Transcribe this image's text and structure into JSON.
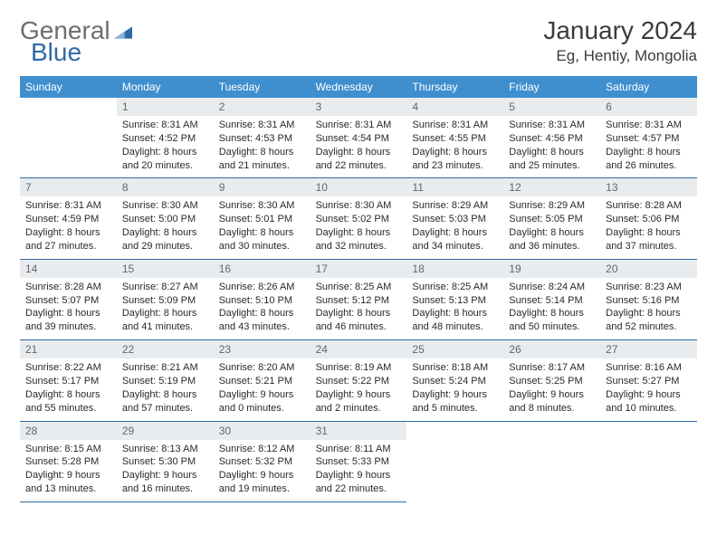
{
  "logo": {
    "part1": "General",
    "part2": "Blue"
  },
  "header": {
    "title": "January 2024",
    "location": "Eg, Hentiy, Mongolia"
  },
  "colors": {
    "header_bg": "#3f8fcf",
    "header_text": "#ffffff",
    "daynum_bg": "#e9ecef",
    "daynum_text": "#666666",
    "body_text": "#2a2a2a",
    "rule": "#2f6aa8",
    "logo_gray": "#6e6e6e",
    "logo_blue": "#2f6aa8"
  },
  "weekdays": [
    "Sunday",
    "Monday",
    "Tuesday",
    "Wednesday",
    "Thursday",
    "Friday",
    "Saturday"
  ],
  "start_offset": 1,
  "days": [
    {
      "n": 1,
      "sunrise": "8:31 AM",
      "sunset": "4:52 PM",
      "daylight": "8 hours and 20 minutes."
    },
    {
      "n": 2,
      "sunrise": "8:31 AM",
      "sunset": "4:53 PM",
      "daylight": "8 hours and 21 minutes."
    },
    {
      "n": 3,
      "sunrise": "8:31 AM",
      "sunset": "4:54 PM",
      "daylight": "8 hours and 22 minutes."
    },
    {
      "n": 4,
      "sunrise": "8:31 AM",
      "sunset": "4:55 PM",
      "daylight": "8 hours and 23 minutes."
    },
    {
      "n": 5,
      "sunrise": "8:31 AM",
      "sunset": "4:56 PM",
      "daylight": "8 hours and 25 minutes."
    },
    {
      "n": 6,
      "sunrise": "8:31 AM",
      "sunset": "4:57 PM",
      "daylight": "8 hours and 26 minutes."
    },
    {
      "n": 7,
      "sunrise": "8:31 AM",
      "sunset": "4:59 PM",
      "daylight": "8 hours and 27 minutes."
    },
    {
      "n": 8,
      "sunrise": "8:30 AM",
      "sunset": "5:00 PM",
      "daylight": "8 hours and 29 minutes."
    },
    {
      "n": 9,
      "sunrise": "8:30 AM",
      "sunset": "5:01 PM",
      "daylight": "8 hours and 30 minutes."
    },
    {
      "n": 10,
      "sunrise": "8:30 AM",
      "sunset": "5:02 PM",
      "daylight": "8 hours and 32 minutes."
    },
    {
      "n": 11,
      "sunrise": "8:29 AM",
      "sunset": "5:03 PM",
      "daylight": "8 hours and 34 minutes."
    },
    {
      "n": 12,
      "sunrise": "8:29 AM",
      "sunset": "5:05 PM",
      "daylight": "8 hours and 36 minutes."
    },
    {
      "n": 13,
      "sunrise": "8:28 AM",
      "sunset": "5:06 PM",
      "daylight": "8 hours and 37 minutes."
    },
    {
      "n": 14,
      "sunrise": "8:28 AM",
      "sunset": "5:07 PM",
      "daylight": "8 hours and 39 minutes."
    },
    {
      "n": 15,
      "sunrise": "8:27 AM",
      "sunset": "5:09 PM",
      "daylight": "8 hours and 41 minutes."
    },
    {
      "n": 16,
      "sunrise": "8:26 AM",
      "sunset": "5:10 PM",
      "daylight": "8 hours and 43 minutes."
    },
    {
      "n": 17,
      "sunrise": "8:25 AM",
      "sunset": "5:12 PM",
      "daylight": "8 hours and 46 minutes."
    },
    {
      "n": 18,
      "sunrise": "8:25 AM",
      "sunset": "5:13 PM",
      "daylight": "8 hours and 48 minutes."
    },
    {
      "n": 19,
      "sunrise": "8:24 AM",
      "sunset": "5:14 PM",
      "daylight": "8 hours and 50 minutes."
    },
    {
      "n": 20,
      "sunrise": "8:23 AM",
      "sunset": "5:16 PM",
      "daylight": "8 hours and 52 minutes."
    },
    {
      "n": 21,
      "sunrise": "8:22 AM",
      "sunset": "5:17 PM",
      "daylight": "8 hours and 55 minutes."
    },
    {
      "n": 22,
      "sunrise": "8:21 AM",
      "sunset": "5:19 PM",
      "daylight": "8 hours and 57 minutes."
    },
    {
      "n": 23,
      "sunrise": "8:20 AM",
      "sunset": "5:21 PM",
      "daylight": "9 hours and 0 minutes."
    },
    {
      "n": 24,
      "sunrise": "8:19 AM",
      "sunset": "5:22 PM",
      "daylight": "9 hours and 2 minutes."
    },
    {
      "n": 25,
      "sunrise": "8:18 AM",
      "sunset": "5:24 PM",
      "daylight": "9 hours and 5 minutes."
    },
    {
      "n": 26,
      "sunrise": "8:17 AM",
      "sunset": "5:25 PM",
      "daylight": "9 hours and 8 minutes."
    },
    {
      "n": 27,
      "sunrise": "8:16 AM",
      "sunset": "5:27 PM",
      "daylight": "9 hours and 10 minutes."
    },
    {
      "n": 28,
      "sunrise": "8:15 AM",
      "sunset": "5:28 PM",
      "daylight": "9 hours and 13 minutes."
    },
    {
      "n": 29,
      "sunrise": "8:13 AM",
      "sunset": "5:30 PM",
      "daylight": "9 hours and 16 minutes."
    },
    {
      "n": 30,
      "sunrise": "8:12 AM",
      "sunset": "5:32 PM",
      "daylight": "9 hours and 19 minutes."
    },
    {
      "n": 31,
      "sunrise": "8:11 AM",
      "sunset": "5:33 PM",
      "daylight": "9 hours and 22 minutes."
    }
  ],
  "labels": {
    "sunrise": "Sunrise:",
    "sunset": "Sunset:",
    "daylight": "Daylight:"
  }
}
